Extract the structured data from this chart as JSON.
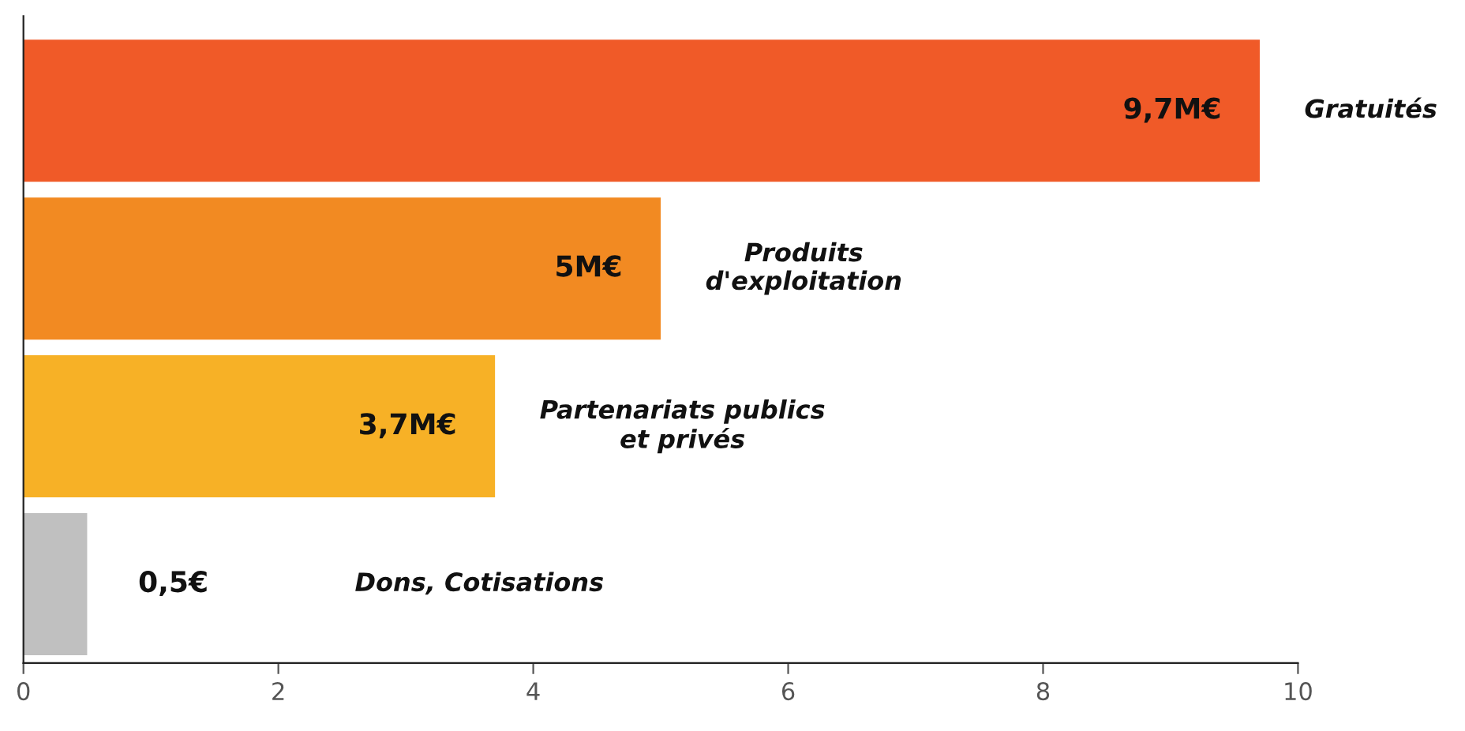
{
  "chart_data": {
    "type": "bar",
    "orientation": "horizontal",
    "categories": [
      "Gratuités",
      "Produits\nd'exploitation",
      "Partenariats publics\net privés",
      "Dons, Cotisations"
    ],
    "values": [
      9.7,
      5,
      3.7,
      0.5
    ],
    "colors": [
      "#f05a28",
      "#f28a22",
      "#f7b126",
      "#c0c0c0"
    ],
    "value_labels": [
      "9,7M€",
      "5M€",
      "3,7M€",
      "0,5€"
    ],
    "xlim": [
      0,
      10
    ],
    "xticks": [
      0,
      2,
      4,
      6,
      8,
      10
    ],
    "tick_labels": "x",
    "grid": false,
    "legend": false
  }
}
